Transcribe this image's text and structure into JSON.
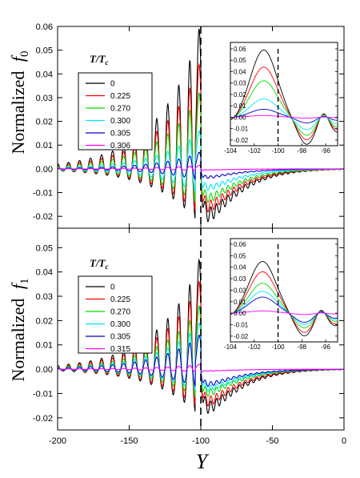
{
  "chart_data": [
    {
      "type": "line",
      "panel": "top",
      "ylabel": "Normalized",
      "ylabel_symbol": "f",
      "ylabel_sub": "0",
      "xlim": [
        -200,
        0
      ],
      "ylim": [
        -0.025,
        0.06
      ],
      "yticks": [
        "0.06",
        "0.05",
        "0.04",
        "0.03",
        "0.02",
        "0.01",
        "0.00",
        "-0.01",
        "-0.02"
      ],
      "ytick_values": [
        0.06,
        0.05,
        0.04,
        0.03,
        0.02,
        0.01,
        0.0,
        -0.01,
        -0.02
      ],
      "vline_x": -100,
      "legend_title": "T/T",
      "legend_title_sub": "c",
      "legend_placement": "upper-left",
      "series": [
        {
          "name": "0",
          "color": "#000000",
          "peak": 0.059,
          "trough": -0.024,
          "tail_min": -0.022
        },
        {
          "name": "0.225",
          "color": "#ff0000",
          "peak": 0.044,
          "trough": -0.02,
          "tail_min": -0.018
        },
        {
          "name": "0.270",
          "color": "#00dd00",
          "peak": 0.032,
          "trough": -0.016,
          "tail_min": -0.014
        },
        {
          "name": "0.300",
          "color": "#00e5ff",
          "peak": 0.016,
          "trough": -0.011,
          "tail_min": -0.009
        },
        {
          "name": "0.305",
          "color": "#0000cc",
          "peak": 0.007,
          "trough": -0.005,
          "tail_min": -0.004
        },
        {
          "name": "0.306",
          "color": "#ff00ff",
          "peak": 0.0015,
          "trough": -0.0008,
          "tail_min": -0.0005
        }
      ],
      "inset": {
        "xlim": [
          -104,
          -95
        ],
        "ylim": [
          -0.025,
          0.06
        ],
        "xticks": [
          "-104",
          "-102",
          "-100",
          "-98",
          "-96"
        ],
        "xtick_values": [
          -104,
          -102,
          -100,
          -98,
          -96
        ],
        "yticks": [
          "0.06",
          "0.05",
          "0.04",
          "0.03",
          "0.02",
          "0.01",
          "0.00",
          "-0.01",
          "-0.02"
        ],
        "ytick_values": [
          0.06,
          0.05,
          0.04,
          0.03,
          0.02,
          0.01,
          0.0,
          -0.01,
          -0.02
        ],
        "vline_x": -100,
        "peak_x": -101.2,
        "min_x": -97.6
      }
    },
    {
      "type": "line",
      "panel": "bottom",
      "ylabel": "Normalized",
      "ylabel_symbol": "f",
      "ylabel_sub": "1",
      "xlim": [
        -200,
        0
      ],
      "ylim": [
        -0.025,
        0.058
      ],
      "yticks": [
        "0.05",
        "0.04",
        "0.03",
        "0.02",
        "0.01",
        "0.00",
        "-0.01",
        "-0.02"
      ],
      "ytick_values": [
        0.05,
        0.04,
        0.03,
        0.02,
        0.01,
        0.0,
        -0.01,
        -0.02
      ],
      "xticks": [
        "-200",
        "-150",
        "-100",
        "-50",
        "0"
      ],
      "xtick_values": [
        -200,
        -150,
        -100,
        -50,
        0
      ],
      "xlabel": "Y",
      "vline_x": -100,
      "legend_title": "T/T",
      "legend_title_sub": "c",
      "legend_placement": "upper-left",
      "series": [
        {
          "name": "0",
          "color": "#000000",
          "peak": 0.045,
          "trough": -0.02,
          "tail_min": -0.018
        },
        {
          "name": "0.225",
          "color": "#ff0000",
          "peak": 0.036,
          "trough": -0.017,
          "tail_min": -0.015
        },
        {
          "name": "0.270",
          "color": "#00dd00",
          "peak": 0.026,
          "trough": -0.013,
          "tail_min": -0.011
        },
        {
          "name": "0.300",
          "color": "#00e5ff",
          "peak": 0.019,
          "trough": -0.01,
          "tail_min": -0.009
        },
        {
          "name": "0.305",
          "color": "#0000cc",
          "peak": 0.014,
          "trough": -0.008,
          "tail_min": -0.007
        },
        {
          "name": "0.315",
          "color": "#ff00ff",
          "peak": 0.002,
          "trough": -0.0012,
          "tail_min": -0.0008
        }
      ],
      "inset": {
        "xlim": [
          -104,
          -95
        ],
        "ylim": [
          -0.025,
          0.06
        ],
        "xticks": [
          "-104",
          "-102",
          "-100",
          "-98",
          "-96"
        ],
        "xtick_values": [
          -104,
          -102,
          -100,
          -98,
          -96
        ],
        "yticks": [
          "0.06",
          "0.05",
          "0.04",
          "0.03",
          "0.02",
          "0.01",
          "0.00",
          "-0.01",
          "-0.02"
        ],
        "ytick_values": [
          0.06,
          0.05,
          0.04,
          0.03,
          0.02,
          0.01,
          0.0,
          -0.01,
          -0.02
        ],
        "vline_x": -100,
        "peak_x": -101.3,
        "min_x": -97.8
      }
    }
  ]
}
